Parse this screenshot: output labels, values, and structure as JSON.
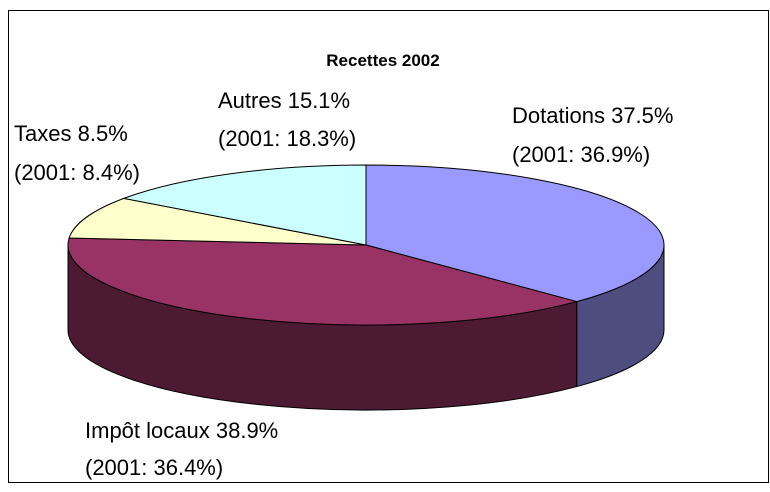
{
  "chart_data": {
    "type": "pie3d",
    "title": "Recettes 2002",
    "categories": [
      "Dotations",
      "Impôt locaux",
      "Taxes",
      "Autres"
    ],
    "values": [
      37.5,
      38.9,
      8.5,
      15.1
    ],
    "value_labels": [
      "37.5%",
      "38.9%",
      "8.5%",
      "15.1%"
    ],
    "previous": {
      "values": [
        36.9,
        36.4,
        8.4,
        18.3
      ],
      "value_labels": [
        "(2001: 36.9%)",
        "(2001: 36.4%)",
        "(2001: 8.4%)",
        "(2001: 18.3%)"
      ]
    },
    "colors": [
      "#9999ff",
      "#993366",
      "#ffffcc",
      "#ccffff"
    ]
  }
}
